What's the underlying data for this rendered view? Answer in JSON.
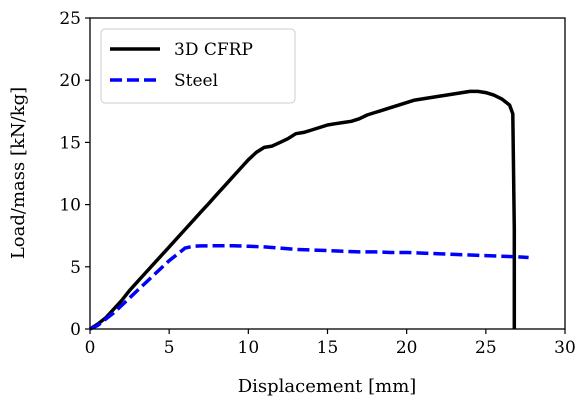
{
  "chart_data": {
    "type": "line",
    "title": "",
    "xlabel": "Displacement [mm]",
    "ylabel": "Load/mass [kN/kg]",
    "xlim": [
      0,
      30
    ],
    "ylim": [
      0,
      25
    ],
    "x_ticks": [
      0,
      5,
      10,
      15,
      20,
      25,
      30
    ],
    "y_ticks": [
      0,
      5,
      10,
      15,
      20,
      25
    ],
    "grid": false,
    "legend_position": "top-left",
    "series": [
      {
        "name": "3D CFRP",
        "color": "#000000",
        "style": "solid",
        "points": [
          [
            0,
            0
          ],
          [
            0.5,
            0.4
          ],
          [
            1,
            0.9
          ],
          [
            1.5,
            1.6
          ],
          [
            2,
            2.3
          ],
          [
            2.5,
            3.1
          ],
          [
            3,
            3.8
          ],
          [
            3.5,
            4.5
          ],
          [
            4,
            5.2
          ],
          [
            4.5,
            5.9
          ],
          [
            5,
            6.6
          ],
          [
            5.5,
            7.3
          ],
          [
            6,
            8.0
          ],
          [
            6.5,
            8.7
          ],
          [
            7,
            9.4
          ],
          [
            7.5,
            10.1
          ],
          [
            8,
            10.8
          ],
          [
            8.5,
            11.5
          ],
          [
            9,
            12.2
          ],
          [
            9.5,
            12.9
          ],
          [
            10,
            13.6
          ],
          [
            10.5,
            14.2
          ],
          [
            11,
            14.6
          ],
          [
            11.5,
            14.7
          ],
          [
            12,
            15.0
          ],
          [
            12.5,
            15.3
          ],
          [
            13,
            15.7
          ],
          [
            13.5,
            15.8
          ],
          [
            14,
            16.0
          ],
          [
            14.5,
            16.2
          ],
          [
            15,
            16.4
          ],
          [
            15.5,
            16.5
          ],
          [
            16,
            16.6
          ],
          [
            16.5,
            16.7
          ],
          [
            17,
            16.9
          ],
          [
            17.5,
            17.2
          ],
          [
            18,
            17.4
          ],
          [
            18.5,
            17.6
          ],
          [
            19,
            17.8
          ],
          [
            19.5,
            18.0
          ],
          [
            20,
            18.2
          ],
          [
            20.5,
            18.4
          ],
          [
            21,
            18.5
          ],
          [
            21.5,
            18.6
          ],
          [
            22,
            18.7
          ],
          [
            22.5,
            18.8
          ],
          [
            23,
            18.9
          ],
          [
            23.5,
            19.0
          ],
          [
            24,
            19.1
          ],
          [
            24.5,
            19.1
          ],
          [
            25,
            19.0
          ],
          [
            25.5,
            18.8
          ],
          [
            26,
            18.5
          ],
          [
            26.5,
            18.0
          ],
          [
            26.7,
            17.3
          ],
          [
            26.8,
            8.0
          ],
          [
            26.8,
            0
          ]
        ]
      },
      {
        "name": "Steel",
        "color": "#0000ff",
        "style": "dashed",
        "points": [
          [
            0,
            0
          ],
          [
            0.5,
            0.3
          ],
          [
            1,
            0.8
          ],
          [
            1.5,
            1.3
          ],
          [
            2,
            1.9
          ],
          [
            2.5,
            2.5
          ],
          [
            3,
            3.1
          ],
          [
            3.5,
            3.7
          ],
          [
            4,
            4.3
          ],
          [
            4.5,
            4.9
          ],
          [
            5,
            5.5
          ],
          [
            5.5,
            6.0
          ],
          [
            6,
            6.5
          ],
          [
            6.5,
            6.65
          ],
          [
            7,
            6.68
          ],
          [
            8,
            6.7
          ],
          [
            9,
            6.7
          ],
          [
            10,
            6.65
          ],
          [
            11,
            6.6
          ],
          [
            12,
            6.5
          ],
          [
            13,
            6.4
          ],
          [
            14,
            6.35
          ],
          [
            15,
            6.3
          ],
          [
            16,
            6.25
          ],
          [
            17,
            6.2
          ],
          [
            18,
            6.2
          ],
          [
            19,
            6.15
          ],
          [
            20,
            6.15
          ],
          [
            21,
            6.1
          ],
          [
            22,
            6.05
          ],
          [
            23,
            6.0
          ],
          [
            24,
            5.95
          ],
          [
            25,
            5.9
          ],
          [
            26,
            5.85
          ],
          [
            27,
            5.8
          ],
          [
            27.7,
            5.75
          ]
        ]
      }
    ]
  }
}
